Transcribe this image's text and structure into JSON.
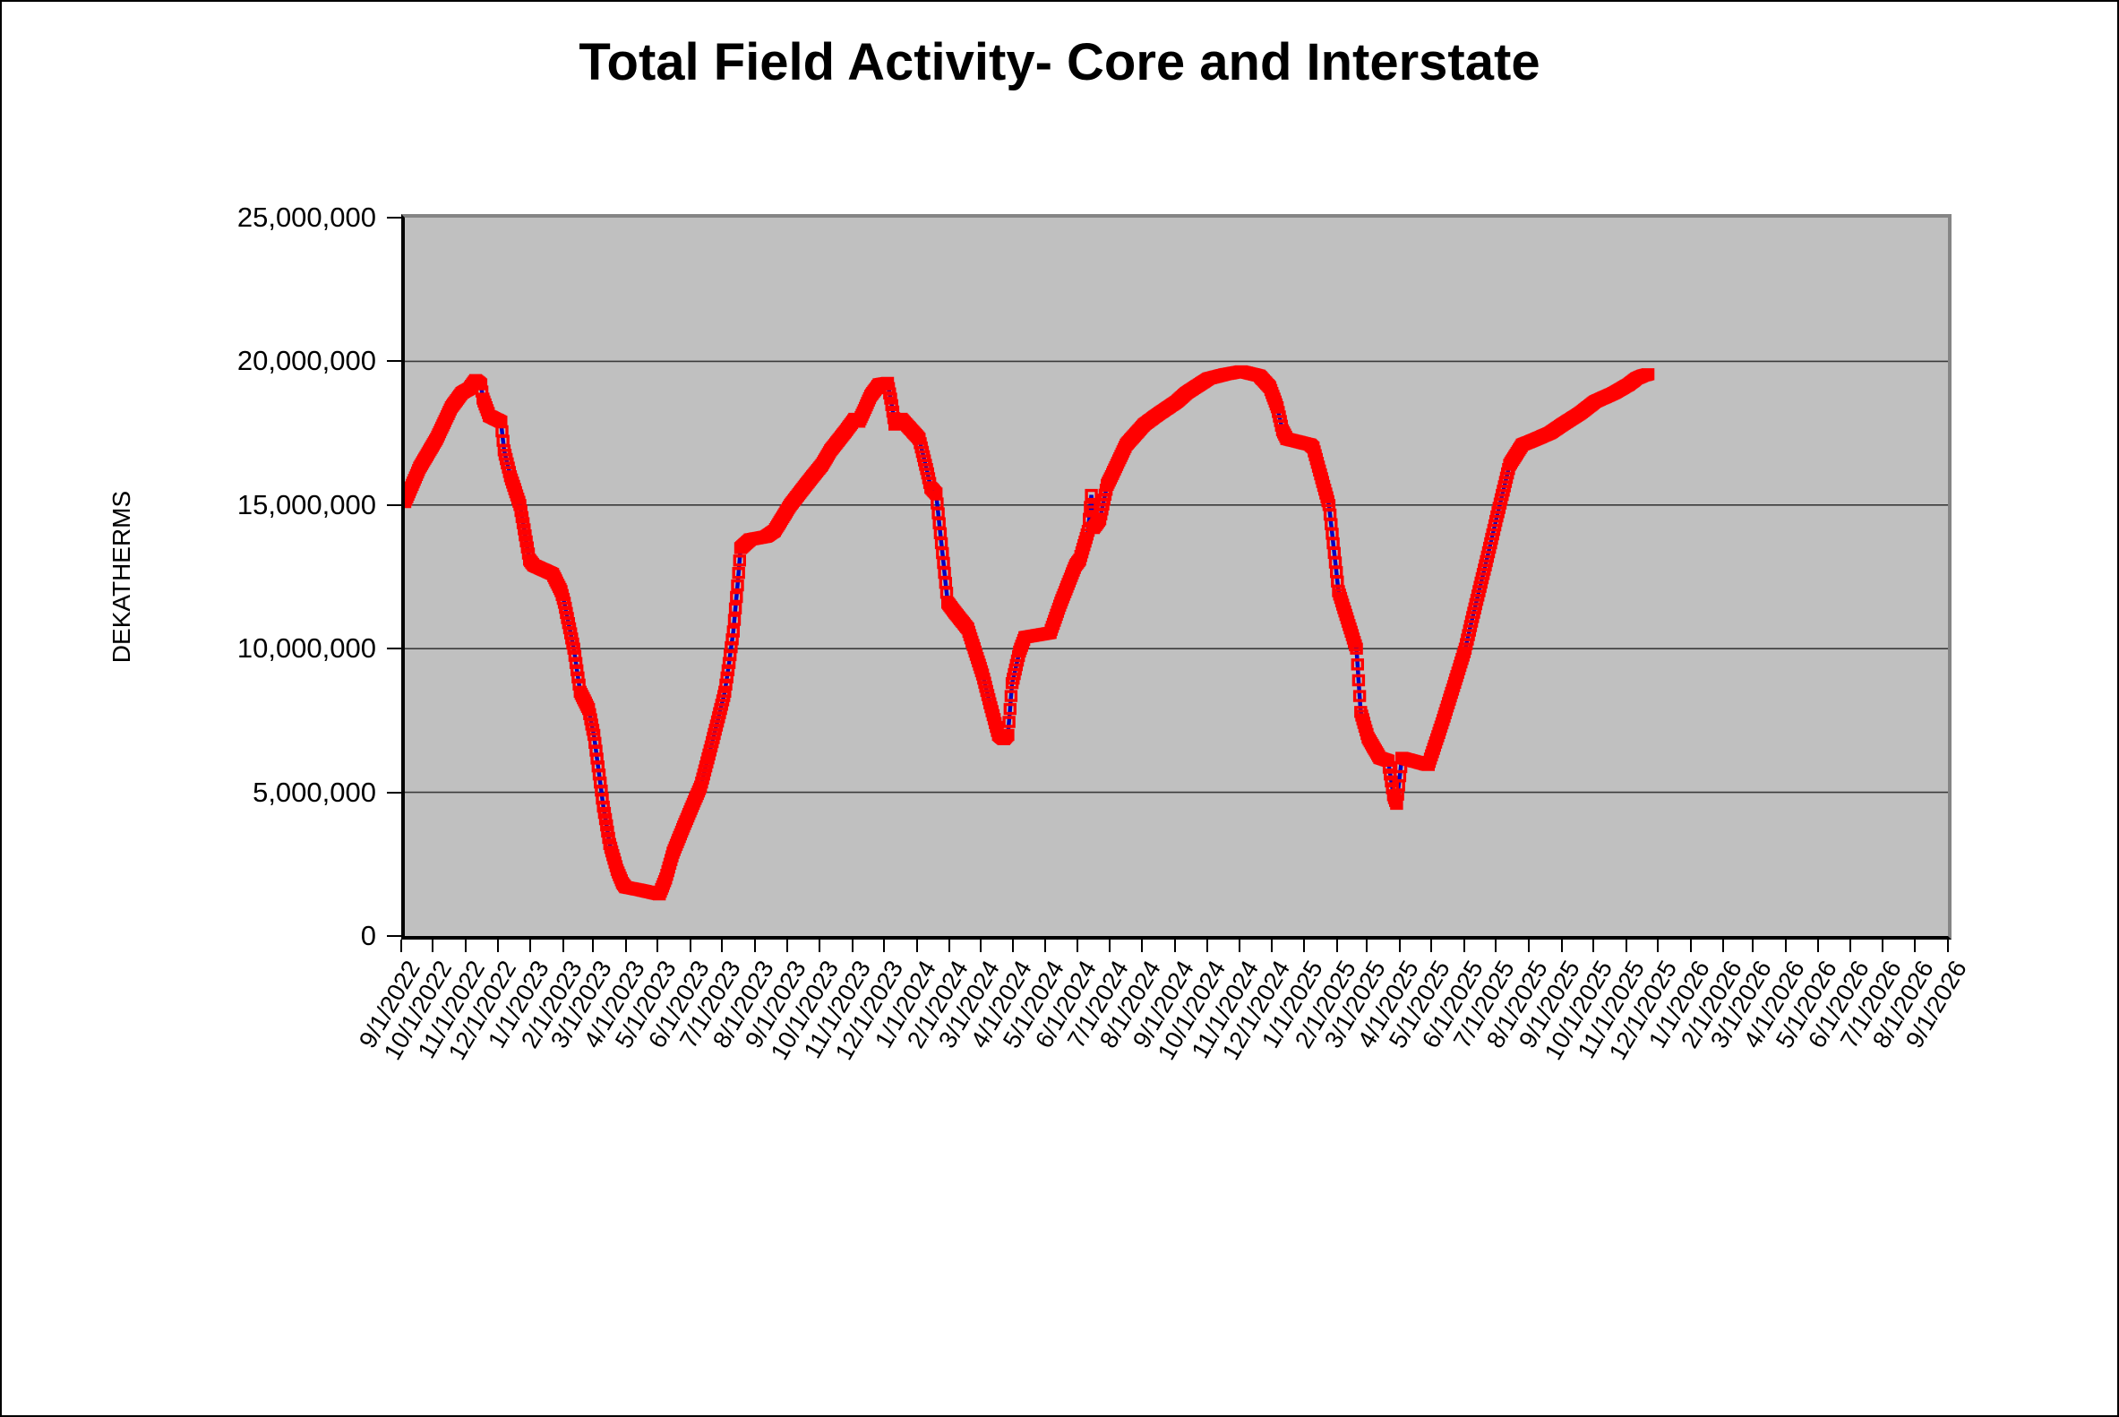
{
  "page": {
    "background": "#ffffff",
    "border_color": "#000000"
  },
  "colors": {
    "plot_bg": "#c0c0c0",
    "gridline": "#3a3a3a",
    "axis_black": "#000000",
    "plot_border_gray": "#858585",
    "series_line_blue": "#0000c4",
    "series_marker_red": "#ff0000",
    "text": "#000000"
  },
  "chart_data": {
    "type": "line",
    "title": "Total Field Activity- Core and Interstate",
    "ylabel": "DEKATHERMS",
    "xlabel": "",
    "legend": "none",
    "grid": "horizontal",
    "ylim": [
      0,
      25000000
    ],
    "y_ticks": [
      0,
      5000000,
      10000000,
      15000000,
      20000000,
      25000000
    ],
    "y_tick_labels": [
      "0",
      "5,000,000",
      "10,000,000",
      "15,000,000",
      "20,000,000",
      "25,000,000"
    ],
    "x_range": [
      "9/1/2022",
      "9/1/2026"
    ],
    "x_tick_labels": [
      "9/1/2022",
      "10/1/2022",
      "11/1/2022",
      "12/1/2022",
      "1/1/2023",
      "2/1/2023",
      "3/1/2023",
      "4/1/2023",
      "5/1/2023",
      "6/1/2023",
      "7/1/2023",
      "8/1/2023",
      "9/1/2023",
      "10/1/2023",
      "11/1/2023",
      "12/1/2023",
      "1/1/2024",
      "2/1/2024",
      "3/1/2024",
      "4/1/2024",
      "5/1/2024",
      "6/1/2024",
      "7/1/2024",
      "8/1/2024",
      "9/1/2024",
      "10/1/2024",
      "11/1/2024",
      "12/1/2024",
      "1/1/2025",
      "2/1/2025",
      "3/1/2025",
      "4/1/2025",
      "5/1/2025",
      "6/1/2025",
      "7/1/2025",
      "8/1/2025",
      "9/1/2025",
      "10/1/2025",
      "11/1/2025",
      "12/1/2025",
      "1/1/2026",
      "2/1/2026",
      "3/1/2026",
      "4/1/2026",
      "5/1/2026",
      "6/1/2026",
      "7/1/2026",
      "8/1/2026",
      "9/1/2026"
    ],
    "marker_style": "hollow-red-square-over-blue-line",
    "points_unit": "dekatherms",
    "points": [
      [
        "2022-09-01",
        15100000
      ],
      [
        "2022-09-15",
        16300000
      ],
      [
        "2022-10-01",
        17300000
      ],
      [
        "2022-10-15",
        18400000
      ],
      [
        "2022-10-25",
        18900000
      ],
      [
        "2022-11-01",
        19050000
      ],
      [
        "2022-11-07",
        19350000
      ],
      [
        "2022-11-12",
        19200000
      ],
      [
        "2022-11-14",
        18700000
      ],
      [
        "2022-11-20",
        18100000
      ],
      [
        "2022-12-01",
        17900000
      ],
      [
        "2022-12-04",
        16900000
      ],
      [
        "2022-12-10",
        16000000
      ],
      [
        "2022-12-19",
        15000000
      ],
      [
        "2022-12-28",
        13100000
      ],
      [
        "2023-01-01",
        12900000
      ],
      [
        "2023-01-19",
        12600000
      ],
      [
        "2023-01-27",
        12000000
      ],
      [
        "2023-01-30",
        11600000
      ],
      [
        "2023-02-08",
        10000000
      ],
      [
        "2023-02-14",
        8500000
      ],
      [
        "2023-02-22",
        7900000
      ],
      [
        "2023-02-27",
        7000000
      ],
      [
        "2023-03-03",
        5900000
      ],
      [
        "2023-03-08",
        4500000
      ],
      [
        "2023-03-14",
        3200000
      ],
      [
        "2023-03-21",
        2300000
      ],
      [
        "2023-03-26",
        1850000
      ],
      [
        "2023-03-29",
        1700000
      ],
      [
        "2023-04-12",
        1600000
      ],
      [
        "2023-04-30",
        1450000
      ],
      [
        "2023-05-06",
        2000000
      ],
      [
        "2023-05-13",
        2900000
      ],
      [
        "2023-05-24",
        3900000
      ],
      [
        "2023-06-01",
        4600000
      ],
      [
        "2023-06-08",
        5200000
      ],
      [
        "2023-06-18",
        6600000
      ],
      [
        "2023-06-27",
        7900000
      ],
      [
        "2023-07-01",
        8500000
      ],
      [
        "2023-07-05",
        9500000
      ],
      [
        "2023-07-09",
        10600000
      ],
      [
        "2023-07-13",
        12200000
      ],
      [
        "2023-07-16",
        13500000
      ],
      [
        "2023-07-25",
        13800000
      ],
      [
        "2023-08-09",
        13900000
      ],
      [
        "2023-08-17",
        14100000
      ],
      [
        "2023-09-01",
        15000000
      ],
      [
        "2023-09-20",
        15900000
      ],
      [
        "2023-10-01",
        16400000
      ],
      [
        "2023-10-09",
        16900000
      ],
      [
        "2023-10-24",
        17600000
      ],
      [
        "2023-11-01",
        18000000
      ],
      [
        "2023-11-05",
        17900000
      ],
      [
        "2023-11-10",
        18300000
      ],
      [
        "2023-11-16",
        18800000
      ],
      [
        "2023-11-24",
        19200000
      ],
      [
        "2023-12-02",
        19250000
      ],
      [
        "2023-12-05",
        18700000
      ],
      [
        "2023-12-09",
        17800000
      ],
      [
        "2023-12-15",
        18000000
      ],
      [
        "2023-12-31",
        17350000
      ],
      [
        "2024-01-01",
        17300000
      ],
      [
        "2024-01-09",
        16100000
      ],
      [
        "2024-01-12",
        15600000
      ],
      [
        "2024-01-17",
        15400000
      ],
      [
        "2024-01-28",
        11600000
      ],
      [
        "2024-02-03",
        11300000
      ],
      [
        "2024-02-16",
        10700000
      ],
      [
        "2024-03-01",
        9100000
      ],
      [
        "2024-03-08",
        8100000
      ],
      [
        "2024-03-16",
        7000000
      ],
      [
        "2024-03-21",
        6850000
      ],
      [
        "2024-03-25",
        7000000
      ],
      [
        "2024-03-29",
        8800000
      ],
      [
        "2024-04-05",
        9900000
      ],
      [
        "2024-04-10",
        10400000
      ],
      [
        "2024-05-04",
        10550000
      ],
      [
        "2024-05-14",
        11600000
      ],
      [
        "2024-05-28",
        12900000
      ],
      [
        "2024-06-01",
        13100000
      ],
      [
        "2024-06-09",
        14100000
      ],
      [
        "2024-06-12",
        15350000
      ],
      [
        "2024-06-14",
        14200000
      ],
      [
        "2024-06-20",
        14500000
      ],
      [
        "2024-06-27",
        15700000
      ],
      [
        "2024-07-01",
        16000000
      ],
      [
        "2024-07-15",
        17100000
      ],
      [
        "2024-08-01",
        17800000
      ],
      [
        "2024-08-12",
        18100000
      ],
      [
        "2024-09-01",
        18600000
      ],
      [
        "2024-09-10",
        18900000
      ],
      [
        "2024-10-01",
        19400000
      ],
      [
        "2024-10-17",
        19550000
      ],
      [
        "2024-11-01",
        19650000
      ],
      [
        "2024-11-18",
        19500000
      ],
      [
        "2024-11-28",
        19100000
      ],
      [
        "2024-12-05",
        18400000
      ],
      [
        "2024-12-10",
        17600000
      ],
      [
        "2024-12-14",
        17300000
      ],
      [
        "2025-01-05",
        17100000
      ],
      [
        "2025-01-08",
        17000000
      ],
      [
        "2025-01-23",
        15000000
      ],
      [
        "2025-02-01",
        12000000
      ],
      [
        "2025-02-18",
        10000000
      ],
      [
        "2025-02-22",
        7800000
      ],
      [
        "2025-03-01",
        6900000
      ],
      [
        "2025-03-12",
        6200000
      ],
      [
        "2025-03-20",
        6100000
      ],
      [
        "2025-03-25",
        4900000
      ],
      [
        "2025-03-28",
        4600000
      ],
      [
        "2025-04-02",
        6200000
      ],
      [
        "2025-04-27",
        5950000
      ],
      [
        "2025-05-01",
        6400000
      ],
      [
        "2025-05-10",
        7400000
      ],
      [
        "2025-05-27",
        9400000
      ],
      [
        "2025-06-01",
        10000000
      ],
      [
        "2025-06-08",
        11100000
      ],
      [
        "2025-06-22",
        13200000
      ],
      [
        "2025-07-01",
        14600000
      ],
      [
        "2025-07-13",
        16400000
      ],
      [
        "2025-07-25",
        17100000
      ],
      [
        "2025-08-01",
        17200000
      ],
      [
        "2025-08-20",
        17500000
      ],
      [
        "2025-09-01",
        17800000
      ],
      [
        "2025-09-18",
        18200000
      ],
      [
        "2025-10-02",
        18600000
      ],
      [
        "2025-10-20",
        18900000
      ],
      [
        "2025-11-03",
        19200000
      ],
      [
        "2025-11-10",
        19400000
      ],
      [
        "2025-11-16",
        19500000
      ],
      [
        "2025-11-21",
        19550000
      ]
    ]
  }
}
